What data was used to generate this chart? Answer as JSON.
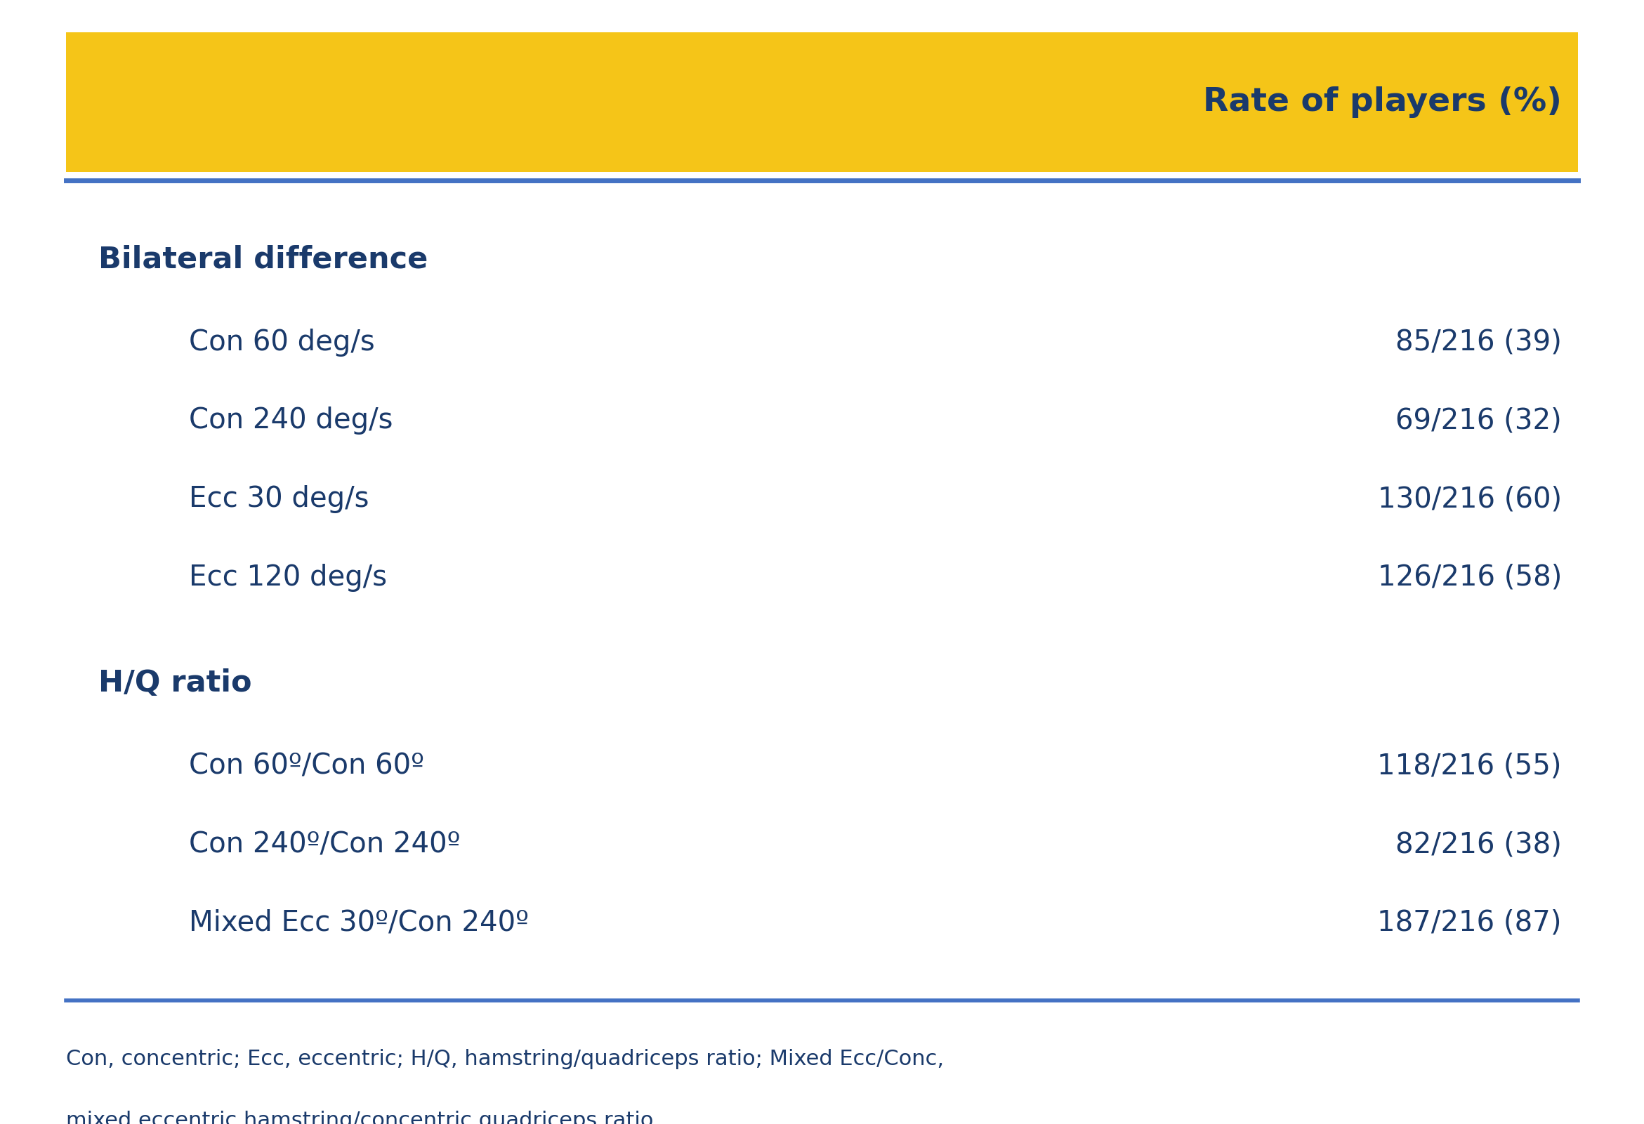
{
  "header_bg_color": "#F5C518",
  "header_text": "Rate of players (%)",
  "header_text_color": "#1a3a6b",
  "header_line_color": "#4472c4",
  "body_bg_color": "#ffffff",
  "text_color": "#1a3a6b",
  "section1_header": "Bilateral difference",
  "section1_rows": [
    [
      "Con 60 deg/s",
      "85/216 (39)"
    ],
    [
      "Con 240 deg/s",
      "69/216 (32)"
    ],
    [
      "Ecc 30 deg/s",
      "130/216 (60)"
    ],
    [
      "Ecc 120 deg/s",
      "126/216 (58)"
    ]
  ],
  "section2_header": "H/Q ratio",
  "section2_rows": [
    [
      "Con 60º/Con 60º",
      "118/216 (55)"
    ],
    [
      "Con 240º/Con 240º",
      "82/216 (38)"
    ],
    [
      "Mixed Ecc 30º/Con 240º",
      "187/216 (87)"
    ]
  ],
  "footnote_line1": "Con, concentric; Ecc, eccentric; H/Q, hamstring/quadriceps ratio; Mixed Ecc/Conc,",
  "footnote_line2": "mixed eccentric hamstring/concentric quadriceps ratio.",
  "footer_line_color": "#4472c4"
}
